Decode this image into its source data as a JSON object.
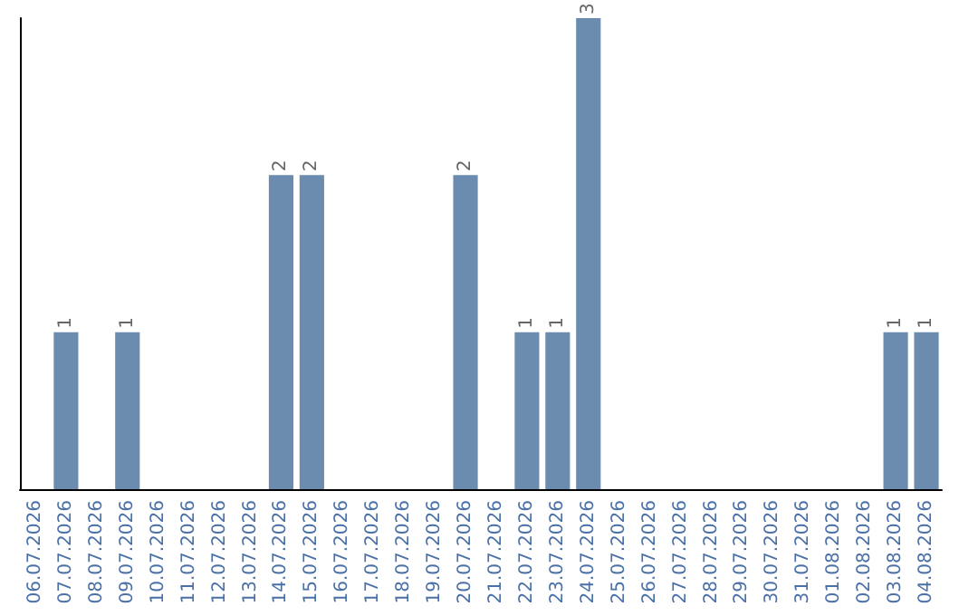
{
  "chart_data": {
    "type": "bar",
    "categories": [
      "06.07.2026",
      "07.07.2026",
      "08.07.2026",
      "09.07.2026",
      "10.07.2026",
      "11.07.2026",
      "12.07.2026",
      "13.07.2026",
      "14.07.2026",
      "15.07.2026",
      "16.07.2026",
      "17.07.2026",
      "18.07.2026",
      "19.07.2026",
      "20.07.2026",
      "21.07.2026",
      "22.07.2026",
      "23.07.2026",
      "24.07.2026",
      "25.07.2026",
      "26.07.2026",
      "27.07.2026",
      "28.07.2026",
      "29.07.2026",
      "30.07.2026",
      "31.07.2026",
      "01.08.2026",
      "02.08.2026",
      "03.08.2026",
      "04.08.2026"
    ],
    "values": [
      0,
      1,
      0,
      1,
      0,
      0,
      0,
      0,
      2,
      2,
      0,
      0,
      0,
      0,
      2,
      0,
      1,
      1,
      3,
      0,
      0,
      0,
      0,
      0,
      0,
      0,
      0,
      0,
      1,
      1
    ],
    "value_labels": [
      null,
      "1",
      null,
      "1",
      null,
      null,
      null,
      null,
      "2",
      "2",
      null,
      null,
      null,
      null,
      "2",
      null,
      "1",
      "1",
      "3",
      null,
      null,
      null,
      null,
      null,
      null,
      null,
      null,
      null,
      "1",
      "1"
    ],
    "color": "#6b8cae",
    "tick_labels": "x",
    "grid": false
  }
}
